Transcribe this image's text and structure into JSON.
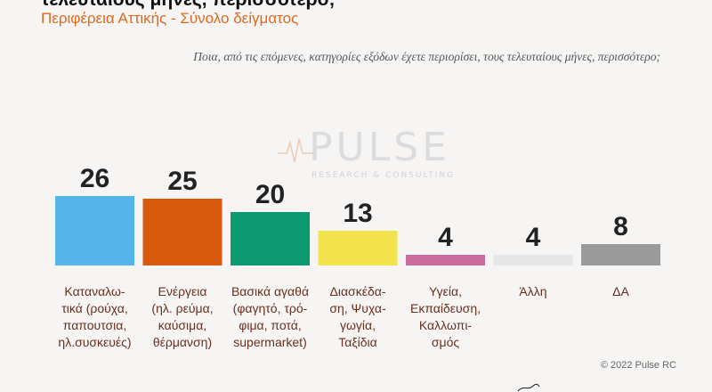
{
  "title": "τελευταίους μήνες, περισσότερο;",
  "subtitle": "Περιφέρεια Αττικής - Σύνολο δείγματος",
  "question": "Ποια, από τις επόμενες, κατηγορίες εξόδων έχετε περιορίσει, τους τελευταίους μήνες, περισσότερο;",
  "watermark": {
    "name": "PULSE",
    "tagline": "RESEARCH & CONSULTING"
  },
  "copyright": "© 2022 Pulse RC",
  "chart_data": {
    "type": "bar",
    "categories": [
      "Καταναλω-τικά (ρούχα, παπουτσια, ηλ.συσκευές)",
      "Ενέργεια (ηλ. ρεύμα, καύσιμα, θέρμανση)",
      "Βασικά αγαθά (φαγητό, τρό-φιμα, ποτά, supermarket)",
      "Διασκέδα-ση, Ψυχα-γωγία, Ταξίδια",
      "Υγεία, Εκπαίδευση, Καλλωπι-σμός",
      "Άλλη",
      "ΔΑ"
    ],
    "category_lines": [
      [
        "Καταναλω-",
        "τικά (ρούχα,",
        "παπουτσια,",
        "ηλ.συσκευές)"
      ],
      [
        "Ενέργεια",
        "(ηλ. ρεύμα,",
        "καύσιμα,",
        "θέρμανση)"
      ],
      [
        "Βασικά αγαθά",
        "(φαγητό, τρό-",
        "φιμα, ποτά,",
        "supermarket)"
      ],
      [
        "Διασκέδα-",
        "ση, Ψυχα-",
        "γωγία,",
        "Ταξίδια"
      ],
      [
        "Υγεία,",
        "Εκπαίδευση,",
        "Καλλωπι-",
        "σμός"
      ],
      [
        "Άλλη"
      ],
      [
        "ΔΑ"
      ]
    ],
    "values": [
      26,
      25,
      20,
      13,
      4,
      4,
      8
    ],
    "colors": [
      "#55b4ea",
      "#d95a0c",
      "#0d9a72",
      "#f2e24b",
      "#cc6b9f",
      "#e6e6e6",
      "#9b9b9b"
    ],
    "ylim": [
      0,
      30
    ],
    "grid": false,
    "legend": "none"
  }
}
